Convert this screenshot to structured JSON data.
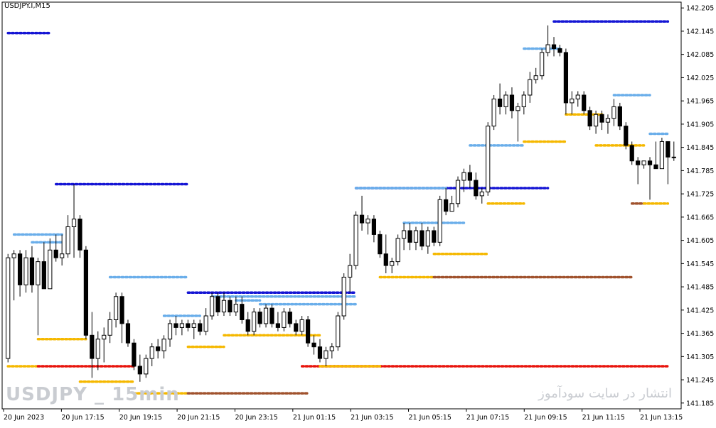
{
  "window": {
    "symbol_title": "USDJPY.I,M15",
    "watermark_left": "USDJPY _ 15min",
    "watermark_right": "انتشار در سایت سودآموز"
  },
  "colors": {
    "background": "#ffffff",
    "candle_up_fill": "#ffffff",
    "candle_down_fill": "#000000",
    "candle_outline": "#000000",
    "level_blue": "#1515d4",
    "level_light_blue": "#6aaeea",
    "level_orange": "#f5b800",
    "level_red": "#e8140c",
    "level_brown": "#a0522d"
  },
  "chart_data": {
    "type": "candlestick",
    "title": "USDJPY.I,M15",
    "y_range": [
      141.17,
      142.22
    ],
    "y_ticks": [
      "142.205",
      "142.145",
      "142.085",
      "142.025",
      "141.965",
      "141.905",
      "141.845",
      "141.785",
      "141.725",
      "141.665",
      "141.605",
      "141.545",
      "141.485",
      "141.425",
      "141.365",
      "141.305",
      "141.245",
      "141.185"
    ],
    "x_ticks": [
      "20 Jun 2023",
      "20 Jun 17:15",
      "20 Jun 19:15",
      "20 Jun 21:15",
      "20 Jun 23:15",
      "21 Jun 01:15",
      "21 Jun 03:15",
      "21 Jun 05:15",
      "21 Jun 07:15",
      "21 Jun 09:15",
      "21 Jun 11:15",
      "21 Jun 13:15"
    ],
    "candles": [
      {
        "o": 141.3,
        "h": 141.57,
        "l": 141.29,
        "c": 141.56
      },
      {
        "o": 141.56,
        "h": 141.58,
        "l": 141.45,
        "c": 141.57
      },
      {
        "o": 141.57,
        "h": 141.58,
        "l": 141.46,
        "c": 141.49
      },
      {
        "o": 141.49,
        "h": 141.58,
        "l": 141.47,
        "c": 141.56
      },
      {
        "o": 141.56,
        "h": 141.59,
        "l": 141.47,
        "c": 141.49
      },
      {
        "o": 141.49,
        "h": 141.56,
        "l": 141.36,
        "c": 141.55
      },
      {
        "o": 141.55,
        "h": 141.6,
        "l": 141.48,
        "c": 141.48
      },
      {
        "o": 141.48,
        "h": 141.61,
        "l": 141.48,
        "c": 141.58
      },
      {
        "o": 141.58,
        "h": 141.62,
        "l": 141.55,
        "c": 141.56
      },
      {
        "o": 141.56,
        "h": 141.62,
        "l": 141.54,
        "c": 141.57
      },
      {
        "o": 141.57,
        "h": 141.67,
        "l": 141.56,
        "c": 141.64
      },
      {
        "o": 141.64,
        "h": 141.75,
        "l": 141.56,
        "c": 141.66
      },
      {
        "o": 141.66,
        "h": 141.67,
        "l": 141.56,
        "c": 141.58
      },
      {
        "o": 141.58,
        "h": 141.59,
        "l": 141.35,
        "c": 141.36
      },
      {
        "o": 141.36,
        "h": 141.42,
        "l": 141.25,
        "c": 141.3
      },
      {
        "o": 141.3,
        "h": 141.37,
        "l": 141.27,
        "c": 141.35
      },
      {
        "o": 141.35,
        "h": 141.38,
        "l": 141.29,
        "c": 141.36
      },
      {
        "o": 141.36,
        "h": 141.42,
        "l": 141.34,
        "c": 141.4
      },
      {
        "o": 141.4,
        "h": 141.47,
        "l": 141.38,
        "c": 141.46
      },
      {
        "o": 141.46,
        "h": 141.47,
        "l": 141.34,
        "c": 141.39
      },
      {
        "o": 141.39,
        "h": 141.4,
        "l": 141.33,
        "c": 141.34
      },
      {
        "o": 141.34,
        "h": 141.35,
        "l": 141.27,
        "c": 141.28
      },
      {
        "o": 141.28,
        "h": 141.31,
        "l": 141.24,
        "c": 141.26
      },
      {
        "o": 141.26,
        "h": 141.31,
        "l": 141.25,
        "c": 141.3
      },
      {
        "o": 141.3,
        "h": 141.34,
        "l": 141.28,
        "c": 141.33
      },
      {
        "o": 141.33,
        "h": 141.35,
        "l": 141.3,
        "c": 141.32
      },
      {
        "o": 141.32,
        "h": 141.36,
        "l": 141.3,
        "c": 141.35
      },
      {
        "o": 141.35,
        "h": 141.4,
        "l": 141.33,
        "c": 141.39
      },
      {
        "o": 141.39,
        "h": 141.41,
        "l": 141.36,
        "c": 141.38
      },
      {
        "o": 141.38,
        "h": 141.4,
        "l": 141.36,
        "c": 141.39
      },
      {
        "o": 141.39,
        "h": 141.4,
        "l": 141.37,
        "c": 141.38
      },
      {
        "o": 141.38,
        "h": 141.4,
        "l": 141.35,
        "c": 141.39
      },
      {
        "o": 141.39,
        "h": 141.4,
        "l": 141.36,
        "c": 141.37
      },
      {
        "o": 141.37,
        "h": 141.43,
        "l": 141.36,
        "c": 141.41
      },
      {
        "o": 141.41,
        "h": 141.47,
        "l": 141.4,
        "c": 141.46
      },
      {
        "o": 141.46,
        "h": 141.47,
        "l": 141.41,
        "c": 141.42
      },
      {
        "o": 141.42,
        "h": 141.47,
        "l": 141.41,
        "c": 141.45
      },
      {
        "o": 141.45,
        "h": 141.46,
        "l": 141.41,
        "c": 141.42
      },
      {
        "o": 141.42,
        "h": 141.46,
        "l": 141.41,
        "c": 141.44
      },
      {
        "o": 141.44,
        "h": 141.46,
        "l": 141.39,
        "c": 141.4
      },
      {
        "o": 141.4,
        "h": 141.42,
        "l": 141.36,
        "c": 141.37
      },
      {
        "o": 141.37,
        "h": 141.43,
        "l": 141.36,
        "c": 141.42
      },
      {
        "o": 141.42,
        "h": 141.43,
        "l": 141.38,
        "c": 141.39
      },
      {
        "o": 141.39,
        "h": 141.44,
        "l": 141.38,
        "c": 141.43
      },
      {
        "o": 141.43,
        "h": 141.44,
        "l": 141.38,
        "c": 141.39
      },
      {
        "o": 141.39,
        "h": 141.42,
        "l": 141.37,
        "c": 141.38
      },
      {
        "o": 141.38,
        "h": 141.43,
        "l": 141.37,
        "c": 141.42
      },
      {
        "o": 141.42,
        "h": 141.43,
        "l": 141.38,
        "c": 141.39
      },
      {
        "o": 141.39,
        "h": 141.4,
        "l": 141.36,
        "c": 141.37
      },
      {
        "o": 141.37,
        "h": 141.41,
        "l": 141.36,
        "c": 141.4
      },
      {
        "o": 141.4,
        "h": 141.41,
        "l": 141.33,
        "c": 141.34
      },
      {
        "o": 141.34,
        "h": 141.36,
        "l": 141.31,
        "c": 141.33
      },
      {
        "o": 141.33,
        "h": 141.35,
        "l": 141.29,
        "c": 141.3
      },
      {
        "o": 141.3,
        "h": 141.33,
        "l": 141.28,
        "c": 141.32
      },
      {
        "o": 141.32,
        "h": 141.34,
        "l": 141.3,
        "c": 141.33
      },
      {
        "o": 141.33,
        "h": 141.42,
        "l": 141.32,
        "c": 141.41
      },
      {
        "o": 141.41,
        "h": 141.52,
        "l": 141.4,
        "c": 141.51
      },
      {
        "o": 141.51,
        "h": 141.57,
        "l": 141.47,
        "c": 141.54
      },
      {
        "o": 141.54,
        "h": 141.68,
        "l": 141.53,
        "c": 141.67
      },
      {
        "o": 141.67,
        "h": 141.72,
        "l": 141.63,
        "c": 141.65
      },
      {
        "o": 141.65,
        "h": 141.67,
        "l": 141.62,
        "c": 141.66
      },
      {
        "o": 141.66,
        "h": 141.67,
        "l": 141.6,
        "c": 141.62
      },
      {
        "o": 141.62,
        "h": 141.63,
        "l": 141.56,
        "c": 141.57
      },
      {
        "o": 141.57,
        "h": 141.62,
        "l": 141.52,
        "c": 141.54
      },
      {
        "o": 141.54,
        "h": 141.56,
        "l": 141.52,
        "c": 141.55
      },
      {
        "o": 141.55,
        "h": 141.62,
        "l": 141.54,
        "c": 141.61
      },
      {
        "o": 141.61,
        "h": 141.65,
        "l": 141.58,
        "c": 141.63
      },
      {
        "o": 141.63,
        "h": 141.65,
        "l": 141.58,
        "c": 141.6
      },
      {
        "o": 141.6,
        "h": 141.64,
        "l": 141.58,
        "c": 141.63
      },
      {
        "o": 141.63,
        "h": 141.65,
        "l": 141.58,
        "c": 141.59
      },
      {
        "o": 141.59,
        "h": 141.64,
        "l": 141.57,
        "c": 141.63
      },
      {
        "o": 141.63,
        "h": 141.64,
        "l": 141.59,
        "c": 141.6
      },
      {
        "o": 141.6,
        "h": 141.72,
        "l": 141.59,
        "c": 141.71
      },
      {
        "o": 141.71,
        "h": 141.74,
        "l": 141.67,
        "c": 141.68
      },
      {
        "o": 141.68,
        "h": 141.72,
        "l": 141.68,
        "c": 141.7
      },
      {
        "o": 141.7,
        "h": 141.77,
        "l": 141.69,
        "c": 141.76
      },
      {
        "o": 141.76,
        "h": 141.79,
        "l": 141.73,
        "c": 141.78
      },
      {
        "o": 141.78,
        "h": 141.8,
        "l": 141.74,
        "c": 141.76
      },
      {
        "o": 141.76,
        "h": 141.78,
        "l": 141.71,
        "c": 141.72
      },
      {
        "o": 141.72,
        "h": 141.74,
        "l": 141.7,
        "c": 141.73
      },
      {
        "o": 141.73,
        "h": 141.91,
        "l": 141.72,
        "c": 141.9
      },
      {
        "o": 141.9,
        "h": 141.98,
        "l": 141.89,
        "c": 141.97
      },
      {
        "o": 141.97,
        "h": 142.01,
        "l": 141.93,
        "c": 141.95
      },
      {
        "o": 141.95,
        "h": 141.99,
        "l": 141.93,
        "c": 141.98
      },
      {
        "o": 141.98,
        "h": 142.0,
        "l": 141.92,
        "c": 141.94
      },
      {
        "o": 141.94,
        "h": 141.96,
        "l": 141.86,
        "c": 141.95
      },
      {
        "o": 141.95,
        "h": 141.99,
        "l": 141.93,
        "c": 141.98
      },
      {
        "o": 141.98,
        "h": 142.04,
        "l": 141.96,
        "c": 142.02
      },
      {
        "o": 142.02,
        "h": 142.05,
        "l": 142.01,
        "c": 142.03
      },
      {
        "o": 142.03,
        "h": 142.1,
        "l": 142.02,
        "c": 142.09
      },
      {
        "o": 142.09,
        "h": 142.16,
        "l": 142.08,
        "c": 142.11
      },
      {
        "o": 142.11,
        "h": 142.13,
        "l": 142.08,
        "c": 142.1
      },
      {
        "o": 142.1,
        "h": 142.11,
        "l": 142.08,
        "c": 142.09
      },
      {
        "o": 142.09,
        "h": 142.1,
        "l": 141.93,
        "c": 141.96
      },
      {
        "o": 141.96,
        "h": 141.99,
        "l": 141.93,
        "c": 141.97
      },
      {
        "o": 141.97,
        "h": 141.99,
        "l": 141.95,
        "c": 141.98
      },
      {
        "o": 141.98,
        "h": 141.99,
        "l": 141.93,
        "c": 141.94
      },
      {
        "o": 141.94,
        "h": 141.95,
        "l": 141.89,
        "c": 141.9
      },
      {
        "o": 141.9,
        "h": 141.94,
        "l": 141.88,
        "c": 141.93
      },
      {
        "o": 141.93,
        "h": 141.94,
        "l": 141.89,
        "c": 141.91
      },
      {
        "o": 141.91,
        "h": 141.93,
        "l": 141.88,
        "c": 141.92
      },
      {
        "o": 141.92,
        "h": 141.97,
        "l": 141.9,
        "c": 141.95
      },
      {
        "o": 141.95,
        "h": 141.96,
        "l": 141.89,
        "c": 141.9
      },
      {
        "o": 141.9,
        "h": 141.91,
        "l": 141.84,
        "c": 141.85
      },
      {
        "o": 141.85,
        "h": 141.86,
        "l": 141.8,
        "c": 141.81
      },
      {
        "o": 141.81,
        "h": 141.82,
        "l": 141.75,
        "c": 141.8
      },
      {
        "o": 141.8,
        "h": 141.81,
        "l": 141.79,
        "c": 141.81
      },
      {
        "o": 141.81,
        "h": 141.82,
        "l": 141.71,
        "c": 141.8
      },
      {
        "o": 141.8,
        "h": 141.86,
        "l": 141.79,
        "c": 141.79
      },
      {
        "o": 141.79,
        "h": 141.87,
        "l": 141.79,
        "c": 141.86
      },
      {
        "o": 141.86,
        "h": 141.86,
        "l": 141.75,
        "c": 141.82
      },
      {
        "o": 141.82,
        "h": 141.86,
        "l": 141.81,
        "c": 141.82
      }
    ],
    "levels": [
      {
        "color": "level_blue",
        "price": 142.14,
        "from": 0,
        "to": 7
      },
      {
        "color": "level_blue",
        "price": 141.75,
        "from": 8,
        "to": 30
      },
      {
        "color": "level_light_blue",
        "price": 141.62,
        "from": 1,
        "to": 9
      },
      {
        "color": "level_light_blue",
        "price": 141.6,
        "from": 4,
        "to": 9
      },
      {
        "color": "level_light_blue",
        "price": 141.51,
        "from": 17,
        "to": 30
      },
      {
        "color": "level_blue",
        "price": 141.47,
        "from": 30,
        "to": 58
      },
      {
        "color": "level_light_blue",
        "price": 141.46,
        "from": 34,
        "to": 58
      },
      {
        "color": "level_light_blue",
        "price": 141.45,
        "from": 38,
        "to": 42
      },
      {
        "color": "level_light_blue",
        "price": 141.44,
        "from": 42,
        "to": 58
      },
      {
        "color": "level_light_blue",
        "price": 141.41,
        "from": 26,
        "to": 32
      },
      {
        "color": "level_orange",
        "price": 141.35,
        "from": 5,
        "to": 13
      },
      {
        "color": "level_orange",
        "price": 141.33,
        "from": 30,
        "to": 36
      },
      {
        "color": "level_orange",
        "price": 141.36,
        "from": 36,
        "to": 52
      },
      {
        "color": "level_orange",
        "price": 141.28,
        "from": 0,
        "to": 5
      },
      {
        "color": "level_red",
        "price": 141.28,
        "from": 5,
        "to": 21
      },
      {
        "color": "level_orange",
        "price": 141.24,
        "from": 12,
        "to": 21
      },
      {
        "color": "level_orange",
        "price": 141.21,
        "from": 21,
        "to": 30
      },
      {
        "color": "level_brown",
        "price": 141.21,
        "from": 30,
        "to": 50
      },
      {
        "color": "level_red",
        "price": 141.28,
        "from": 49,
        "to": 110
      },
      {
        "color": "level_orange",
        "price": 141.28,
        "from": 52,
        "to": 62
      },
      {
        "color": "level_blue",
        "price": 141.74,
        "from": 58,
        "to": 90
      },
      {
        "color": "level_light_blue",
        "price": 141.74,
        "from": 58,
        "to": 73
      },
      {
        "color": "level_light_blue",
        "price": 141.65,
        "from": 66,
        "to": 76
      },
      {
        "color": "level_orange",
        "price": 141.57,
        "from": 71,
        "to": 80
      },
      {
        "color": "level_orange",
        "price": 141.51,
        "from": 62,
        "to": 71
      },
      {
        "color": "level_brown",
        "price": 141.51,
        "from": 71,
        "to": 104
      },
      {
        "color": "level_light_blue",
        "price": 141.85,
        "from": 77,
        "to": 86
      },
      {
        "color": "level_orange",
        "price": 141.7,
        "from": 80,
        "to": 86
      },
      {
        "color": "level_light_blue",
        "price": 142.1,
        "from": 86,
        "to": 92
      },
      {
        "color": "level_light_blue",
        "price": 142.17,
        "from": 91,
        "to": 110
      },
      {
        "color": "level_blue",
        "price": 142.17,
        "from": 91,
        "to": 110
      },
      {
        "color": "level_orange",
        "price": 141.86,
        "from": 86,
        "to": 93
      },
      {
        "color": "level_orange",
        "price": 141.93,
        "from": 93,
        "to": 99
      },
      {
        "color": "level_light_blue",
        "price": 141.98,
        "from": 101,
        "to": 107
      },
      {
        "color": "level_orange",
        "price": 141.85,
        "from": 98,
        "to": 106
      },
      {
        "color": "level_light_blue",
        "price": 141.88,
        "from": 107,
        "to": 110
      },
      {
        "color": "level_brown",
        "price": 141.7,
        "from": 104,
        "to": 106
      },
      {
        "color": "level_orange",
        "price": 141.7,
        "from": 106,
        "to": 110
      }
    ]
  }
}
